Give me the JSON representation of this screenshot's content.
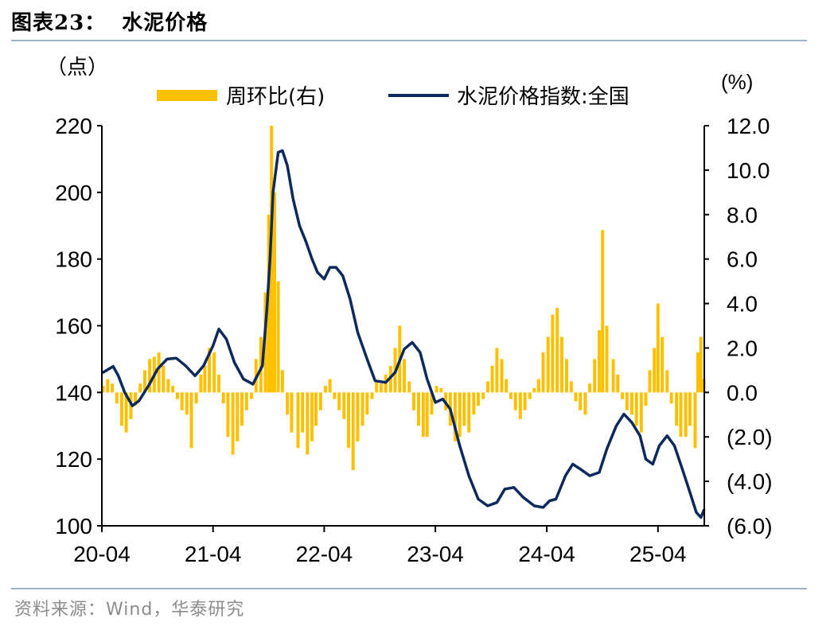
{
  "figure": {
    "title": "图表23：  水泥价格",
    "source": "资料来源：Wind，华泰研究"
  },
  "colors": {
    "bar": "#FFC000",
    "line": "#0E2A5C",
    "axis": "#000000",
    "rule": "#9FB4CC"
  },
  "chart_data": {
    "type": "bar+line",
    "left_axis": {
      "unit": "（点）",
      "ylim": [
        100,
        220
      ],
      "ticks": [
        "100",
        "120",
        "140",
        "160",
        "180",
        "200",
        "220"
      ]
    },
    "right_axis": {
      "unit": "(%)",
      "ylim": [
        -6,
        12
      ],
      "ticks": [
        "(6.0)",
        "(4.0)",
        "(2.0)",
        "0.0",
        "2.0",
        "4.0",
        "6.0",
        "8.0",
        "10.0",
        "12.0"
      ]
    },
    "x_axis": {
      "range": [
        "2020-04-01",
        "2025-08-31"
      ],
      "ticks": [
        "20-04",
        "21-04",
        "22-04",
        "23-04",
        "24-04",
        "25-04"
      ]
    },
    "legend": {
      "position": "top",
      "items": [
        "周环比(右)",
        "水泥价格指数:全国"
      ]
    },
    "grid": false,
    "series": [
      {
        "name": "水泥价格指数:全国",
        "type": "line",
        "axis": "left",
        "points": [
          [
            "2020-04-01",
            145.8
          ],
          [
            "2020-04-20",
            146.8
          ],
          [
            "2020-05-08",
            147.8
          ],
          [
            "2020-05-25",
            145.0
          ],
          [
            "2020-06-15",
            140.0
          ],
          [
            "2020-07-10",
            136.0
          ],
          [
            "2020-08-01",
            137.5
          ],
          [
            "2020-09-01",
            142.0
          ],
          [
            "2020-10-01",
            147.0
          ],
          [
            "2020-11-01",
            150.0
          ],
          [
            "2020-12-01",
            150.3
          ],
          [
            "2021-01-01",
            148.0
          ],
          [
            "2021-02-01",
            145.0
          ],
          [
            "2021-03-01",
            148.0
          ],
          [
            "2021-04-01",
            154.0
          ],
          [
            "2021-04-20",
            159.0
          ],
          [
            "2021-05-15",
            156.0
          ],
          [
            "2021-06-10",
            149.0
          ],
          [
            "2021-07-10",
            144.0
          ],
          [
            "2021-08-10",
            142.5
          ],
          [
            "2021-09-10",
            148.0
          ],
          [
            "2021-09-25",
            165.0
          ],
          [
            "2021-10-05",
            180.0
          ],
          [
            "2021-10-15",
            200.0
          ],
          [
            "2021-11-01",
            212.0
          ],
          [
            "2021-11-15",
            212.5
          ],
          [
            "2021-12-01",
            208.0
          ],
          [
            "2021-12-20",
            198.0
          ],
          [
            "2022-01-10",
            190.0
          ],
          [
            "2022-02-01",
            185.0
          ],
          [
            "2022-02-20",
            180.0
          ],
          [
            "2022-03-10",
            176.0
          ],
          [
            "2022-04-01",
            174.0
          ],
          [
            "2022-04-20",
            177.5
          ],
          [
            "2022-05-10",
            177.5
          ],
          [
            "2022-06-01",
            175.0
          ],
          [
            "2022-06-25",
            168.0
          ],
          [
            "2022-07-20",
            158.0
          ],
          [
            "2022-08-20",
            150.0
          ],
          [
            "2022-09-15",
            143.5
          ],
          [
            "2022-10-20",
            143.0
          ],
          [
            "2022-11-20",
            146.0
          ],
          [
            "2022-12-20",
            153.0
          ],
          [
            "2023-01-15",
            155.0
          ],
          [
            "2023-02-10",
            152.0
          ],
          [
            "2023-03-05",
            144.0
          ],
          [
            "2023-04-01",
            137.0
          ],
          [
            "2023-04-25",
            138.0
          ],
          [
            "2023-05-20",
            135.0
          ],
          [
            "2023-06-20",
            124.0
          ],
          [
            "2023-07-20",
            115.0
          ],
          [
            "2023-08-20",
            108.0
          ],
          [
            "2023-09-20",
            106.0
          ],
          [
            "2023-10-20",
            107.0
          ],
          [
            "2023-11-15",
            111.0
          ],
          [
            "2023-12-15",
            111.5
          ],
          [
            "2024-01-15",
            108.5
          ],
          [
            "2024-02-20",
            106.0
          ],
          [
            "2024-03-20",
            105.5
          ],
          [
            "2024-04-10",
            107.5
          ],
          [
            "2024-05-01",
            108.0
          ],
          [
            "2024-06-01",
            115.0
          ],
          [
            "2024-06-25",
            118.5
          ],
          [
            "2024-07-20",
            117.0
          ],
          [
            "2024-08-20",
            115.0
          ],
          [
            "2024-09-20",
            116.0
          ],
          [
            "2024-10-15",
            123.0
          ],
          [
            "2024-11-15",
            130.0
          ],
          [
            "2024-12-10",
            133.5
          ],
          [
            "2025-01-05",
            131.0
          ],
          [
            "2025-02-01",
            127.0
          ],
          [
            "2025-02-20",
            120.0
          ],
          [
            "2025-03-15",
            118.5
          ],
          [
            "2025-04-05",
            124.0
          ],
          [
            "2025-05-01",
            127.0
          ],
          [
            "2025-05-25",
            124.0
          ],
          [
            "2025-06-20",
            117.0
          ],
          [
            "2025-07-15",
            110.0
          ],
          [
            "2025-08-05",
            104.0
          ],
          [
            "2025-08-20",
            102.5
          ],
          [
            "2025-08-31",
            105.0
          ]
        ]
      },
      {
        "name": "周环比(右)",
        "type": "bar",
        "axis": "right",
        "points": [
          [
            "2020-04-05",
            0.3
          ],
          [
            "2020-04-20",
            0.6
          ],
          [
            "2020-05-05",
            0.4
          ],
          [
            "2020-05-20",
            -0.5
          ],
          [
            "2020-06-05",
            -1.5
          ],
          [
            "2020-06-20",
            -1.8
          ],
          [
            "2020-07-05",
            -1.2
          ],
          [
            "2020-07-20",
            -0.6
          ],
          [
            "2020-08-05",
            0.4
          ],
          [
            "2020-08-20",
            1.0
          ],
          [
            "2020-09-05",
            1.5
          ],
          [
            "2020-09-20",
            1.6
          ],
          [
            "2020-10-05",
            1.8
          ],
          [
            "2020-10-20",
            1.2
          ],
          [
            "2020-11-05",
            0.6
          ],
          [
            "2020-11-20",
            0.3
          ],
          [
            "2020-12-05",
            -0.3
          ],
          [
            "2020-12-20",
            -0.8
          ],
          [
            "2021-01-05",
            -1.0
          ],
          [
            "2021-01-20",
            -2.5
          ],
          [
            "2021-02-05",
            -0.5
          ],
          [
            "2021-02-20",
            0.8
          ],
          [
            "2021-03-05",
            1.2
          ],
          [
            "2021-03-20",
            2.0
          ],
          [
            "2021-04-05",
            1.8
          ],
          [
            "2021-04-20",
            0.8
          ],
          [
            "2021-05-05",
            -0.5
          ],
          [
            "2021-05-20",
            -2.0
          ],
          [
            "2021-06-05",
            -2.8
          ],
          [
            "2021-06-20",
            -2.2
          ],
          [
            "2021-07-05",
            -1.5
          ],
          [
            "2021-07-20",
            -0.8
          ],
          [
            "2021-08-05",
            -0.3
          ],
          [
            "2021-08-20",
            1.5
          ],
          [
            "2021-09-05",
            2.5
          ],
          [
            "2021-09-20",
            4.5
          ],
          [
            "2021-10-01",
            8.0
          ],
          [
            "2021-10-10",
            12.0
          ],
          [
            "2021-10-20",
            9.0
          ],
          [
            "2021-11-01",
            5.0
          ],
          [
            "2021-11-15",
            1.0
          ],
          [
            "2021-12-01",
            -1.0
          ],
          [
            "2021-12-15",
            -1.8
          ],
          [
            "2022-01-05",
            -2.5
          ],
          [
            "2022-01-20",
            -1.8
          ],
          [
            "2022-02-05",
            -2.8
          ],
          [
            "2022-02-20",
            -2.2
          ],
          [
            "2022-03-05",
            -1.5
          ],
          [
            "2022-03-20",
            -0.8
          ],
          [
            "2022-04-05",
            0.3
          ],
          [
            "2022-04-20",
            0.6
          ],
          [
            "2022-05-05",
            -0.3
          ],
          [
            "2022-05-20",
            -0.8
          ],
          [
            "2022-06-05",
            -1.2
          ],
          [
            "2022-06-20",
            -2.5
          ],
          [
            "2022-07-05",
            -3.5
          ],
          [
            "2022-07-20",
            -2.2
          ],
          [
            "2022-08-05",
            -1.5
          ],
          [
            "2022-08-20",
            -1.0
          ],
          [
            "2022-09-05",
            -0.3
          ],
          [
            "2022-09-20",
            0.5
          ],
          [
            "2022-10-05",
            0.4
          ],
          [
            "2022-10-20",
            0.8
          ],
          [
            "2022-11-05",
            1.2
          ],
          [
            "2022-11-20",
            2.0
          ],
          [
            "2022-12-05",
            3.0
          ],
          [
            "2022-12-20",
            1.5
          ],
          [
            "2023-01-05",
            0.5
          ],
          [
            "2023-01-20",
            -0.8
          ],
          [
            "2023-02-05",
            -1.5
          ],
          [
            "2023-02-20",
            -2.0
          ],
          [
            "2023-03-05",
            -2.0
          ],
          [
            "2023-03-20",
            -1.0
          ],
          [
            "2023-04-05",
            0.3
          ],
          [
            "2023-04-20",
            0.2
          ],
          [
            "2023-05-05",
            -0.8
          ],
          [
            "2023-05-20",
            -1.5
          ],
          [
            "2023-06-05",
            -2.2
          ],
          [
            "2023-06-20",
            -2.0
          ],
          [
            "2023-07-05",
            -1.5
          ],
          [
            "2023-07-20",
            -1.8
          ],
          [
            "2023-08-05",
            -1.0
          ],
          [
            "2023-08-20",
            -0.6
          ],
          [
            "2023-09-05",
            -0.3
          ],
          [
            "2023-09-20",
            0.5
          ],
          [
            "2023-10-05",
            1.2
          ],
          [
            "2023-10-20",
            2.0
          ],
          [
            "2023-11-05",
            1.5
          ],
          [
            "2023-11-20",
            0.6
          ],
          [
            "2023-12-05",
            -0.3
          ],
          [
            "2023-12-20",
            -0.8
          ],
          [
            "2024-01-05",
            -1.2
          ],
          [
            "2024-01-20",
            -0.8
          ],
          [
            "2024-02-05",
            -0.3
          ],
          [
            "2024-02-20",
            0.2
          ],
          [
            "2024-03-05",
            0.6
          ],
          [
            "2024-03-20",
            1.8
          ],
          [
            "2024-04-05",
            2.5
          ],
          [
            "2024-04-20",
            3.5
          ],
          [
            "2024-05-05",
            3.8
          ],
          [
            "2024-05-20",
            2.5
          ],
          [
            "2024-06-05",
            1.5
          ],
          [
            "2024-06-20",
            0.5
          ],
          [
            "2024-07-05",
            -0.4
          ],
          [
            "2024-07-20",
            -0.8
          ],
          [
            "2024-08-05",
            -1.0
          ],
          [
            "2024-08-20",
            0.4
          ],
          [
            "2024-09-05",
            1.5
          ],
          [
            "2024-09-20",
            2.8
          ],
          [
            "2024-10-01",
            7.3
          ],
          [
            "2024-10-15",
            3.0
          ],
          [
            "2024-11-05",
            1.5
          ],
          [
            "2024-11-20",
            0.8
          ],
          [
            "2024-12-05",
            -0.3
          ],
          [
            "2024-12-20",
            -0.8
          ],
          [
            "2025-01-05",
            -1.0
          ],
          [
            "2025-01-20",
            -1.5
          ],
          [
            "2025-02-05",
            -1.8
          ],
          [
            "2025-02-20",
            -0.6
          ],
          [
            "2025-03-05",
            1.0
          ],
          [
            "2025-03-20",
            2.0
          ],
          [
            "2025-04-01",
            4.0
          ],
          [
            "2025-04-15",
            2.5
          ],
          [
            "2025-05-01",
            1.0
          ],
          [
            "2025-05-15",
            -0.5
          ],
          [
            "2025-06-01",
            -1.5
          ],
          [
            "2025-06-15",
            -2.0
          ],
          [
            "2025-07-01",
            -2.0
          ],
          [
            "2025-07-15",
            -1.5
          ],
          [
            "2025-08-01",
            -2.5
          ],
          [
            "2025-08-10",
            1.8
          ],
          [
            "2025-08-20",
            2.5
          ],
          [
            "2025-08-30",
            0.6
          ]
        ]
      }
    ]
  }
}
